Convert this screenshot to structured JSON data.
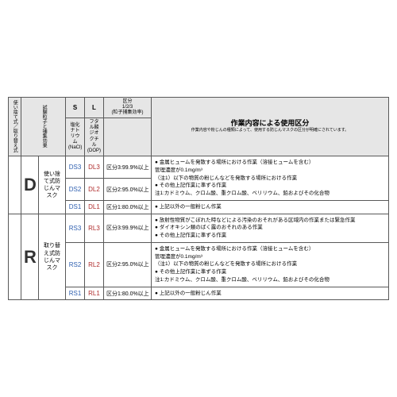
{
  "colors": {
    "border": "#595959",
    "header_bg": "#e6e6e6",
    "blue": "#2e5fb0",
    "red": "#b02e2e",
    "text": "#333333",
    "bg": "#ffffff"
  },
  "header": {
    "col0": "使い捨て式／取り替え式",
    "col1": "試験粒子と捕集効果",
    "s_label": "S",
    "s_sub": "塩化ナトリウム(NaCl)",
    "l_label": "L",
    "l_sub": "フタル酸ジオクチル(DOP)",
    "kubun_label": "区分",
    "kubun_sub": "1/2/3",
    "kubun_sub2": "(粒子捕集効率)",
    "work_label": "作業内容による使用区分",
    "work_sub": "作業内容や粉じんの種類によって、使用する防じんマスクの区分が明確にされています。"
  },
  "groups": [
    {
      "letter": "D",
      "type": "使い捨て式防じんマスク",
      "rows": [
        {
          "s": "DS3",
          "l": "DL3",
          "kubun": "区分3:99.9%以上",
          "work": [
            "金属ヒュームを発散する場所における作業（溶接ヒュームを含む）",
            {
              "indent": true,
              "text": "管理濃度が0.1mg/m³"
            },
            {
              "indent": true,
              "text": "（注1）以下の物質の粉じんなどを発散する場所における作業"
            },
            "その他上記作業に準ずる作業",
            {
              "indent": true,
              "text": "注1:カドミウム、クロム酸、重クロム酸、ベリリウム、鉛およびその化合物"
            }
          ],
          "work_rowspan": 2
        },
        {
          "s": "DS2",
          "l": "DL2",
          "kubun": "区分2:95.0%以上"
        },
        {
          "s": "DS1",
          "l": "DL1",
          "kubun": "区分1:80.0%以上",
          "work": [
            "上記以外の一般粉じん作業"
          ]
        }
      ]
    },
    {
      "letter": "R",
      "type": "取り替え式防じんマスク",
      "rows": [
        {
          "s": "RS3",
          "l": "RL3",
          "kubun": "区分3:99.9%以上",
          "work": [
            "放射性物質がこぼれた時などによる汚染のおそれがある区域内の作業または緊急作業",
            "ダイオキシン類のばく露のおそれのある作業",
            "その他上記作業に準ずる作業"
          ]
        },
        {
          "s": "RS2",
          "l": "RL2",
          "kubun": "区分2:95.0%以上",
          "work": [
            "金属ヒュームを発散する場所における作業（溶接ヒュームを含む）",
            {
              "indent": true,
              "text": "管理濃度が0.1mg/m³"
            },
            {
              "indent": true,
              "text": "（注1）以下の物質の粉じんなどを発散する場所における作業"
            },
            "その他上記作業に準ずる作業",
            {
              "indent": true,
              "text": "注1:カドミウム、クロム酸、重クロム酸、ベリリウム、鉛およびその化合物"
            }
          ]
        },
        {
          "s": "RS1",
          "l": "RL1",
          "kubun": "区分1:80.0%以上",
          "work": [
            "上記以外の一般粉じん作業"
          ]
        }
      ]
    }
  ]
}
